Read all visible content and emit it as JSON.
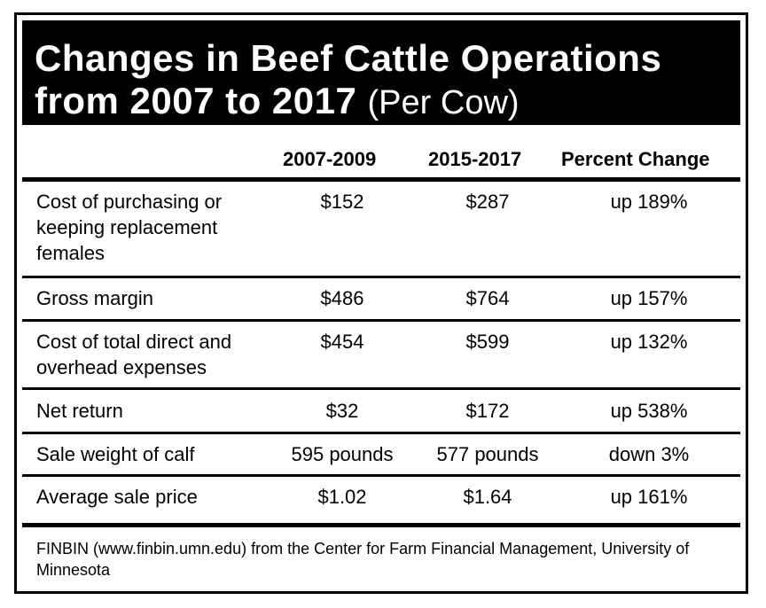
{
  "title": {
    "line1": "Changes in Beef Cattle Operations",
    "line2": "from 2007 to 2017",
    "subtitle": "(Per Cow)"
  },
  "chart_data": {
    "type": "table",
    "columns": [
      "",
      "2007-2009",
      "2015-2017",
      "Percent Change"
    ],
    "rows": [
      {
        "label": "Cost of purchasing or keeping replacement females",
        "p1": "$152",
        "p2": "$287",
        "change": "up 189%"
      },
      {
        "label": "Gross margin",
        "p1": "$486",
        "p2": "$764",
        "change": "up 157%"
      },
      {
        "label": "Cost of total direct and overhead expenses",
        "p1": "$454",
        "p2": "$599",
        "change": "up 132%"
      },
      {
        "label": "Net return",
        "p1": "$32",
        "p2": "$172",
        "change": "up 538%"
      },
      {
        "label": "Sale weight of calf",
        "p1": "595 pounds",
        "p2": "577 pounds",
        "change": "down 3%"
      },
      {
        "label": "Average sale price",
        "p1": "$1.02",
        "p2": "$1.64",
        "change": "up 161%"
      }
    ]
  },
  "source": "FINBIN (www.finbin.umn.edu) from the Center for Farm Financial Management, University of Minnesota"
}
